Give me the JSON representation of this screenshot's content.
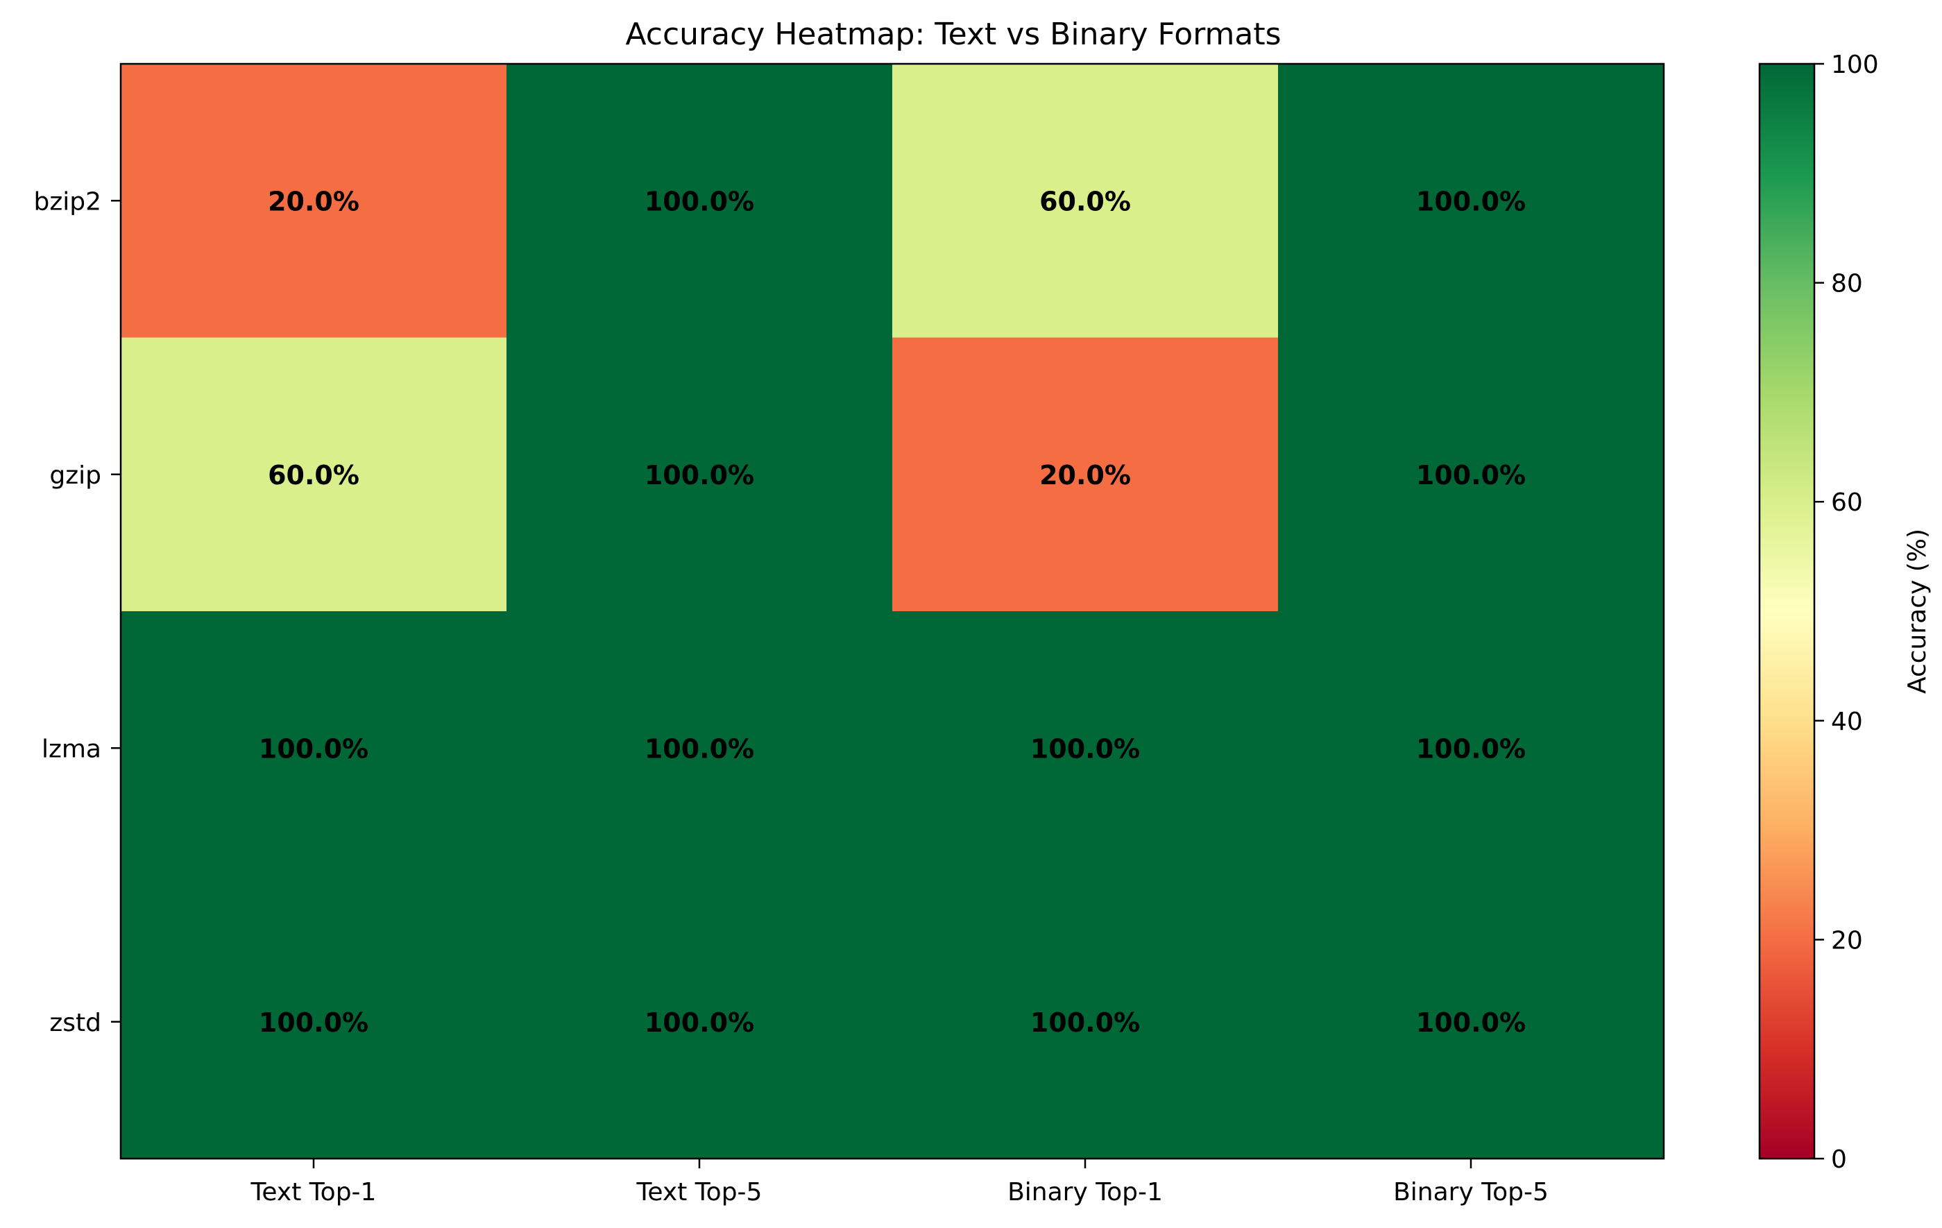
{
  "chart_data": {
    "type": "heatmap",
    "title": "Accuracy Heatmap: Text vs Binary Formats",
    "xlabel": "",
    "ylabel": "",
    "x_categories": [
      "Text Top-1",
      "Text Top-5",
      "Binary Top-1",
      "Binary Top-5"
    ],
    "y_categories": [
      "bzip2",
      "gzip",
      "lzma",
      "zstd"
    ],
    "values": [
      [
        20,
        100,
        60,
        100
      ],
      [
        60,
        100,
        20,
        100
      ],
      [
        100,
        100,
        100,
        100
      ],
      [
        100,
        100,
        100,
        100
      ]
    ],
    "cell_labels": [
      [
        "20.0%",
        "100.0%",
        "60.0%",
        "100.0%"
      ],
      [
        "60.0%",
        "100.0%",
        "20.0%",
        "100.0%"
      ],
      [
        "100.0%",
        "100.0%",
        "100.0%",
        "100.0%"
      ],
      [
        "100.0%",
        "100.0%",
        "100.0%",
        "100.0%"
      ]
    ],
    "colorbar": {
      "label": "Accuracy (%)",
      "range": [
        0,
        100
      ],
      "ticks": [
        "0",
        "20",
        "40",
        "60",
        "80",
        "100"
      ],
      "colormap": "RdYlGn",
      "stops": [
        {
          "at": 0,
          "color": "#a50026"
        },
        {
          "at": 10,
          "color": "#d73027"
        },
        {
          "at": 20,
          "color": "#f46d43"
        },
        {
          "at": 30,
          "color": "#fdae61"
        },
        {
          "at": 40,
          "color": "#fee08b"
        },
        {
          "at": 50,
          "color": "#ffffbf"
        },
        {
          "at": 60,
          "color": "#d9ef8b"
        },
        {
          "at": 70,
          "color": "#a6d96a"
        },
        {
          "at": 80,
          "color": "#66bd63"
        },
        {
          "at": 90,
          "color": "#1a9850"
        },
        {
          "at": 100,
          "color": "#006837"
        }
      ]
    }
  }
}
